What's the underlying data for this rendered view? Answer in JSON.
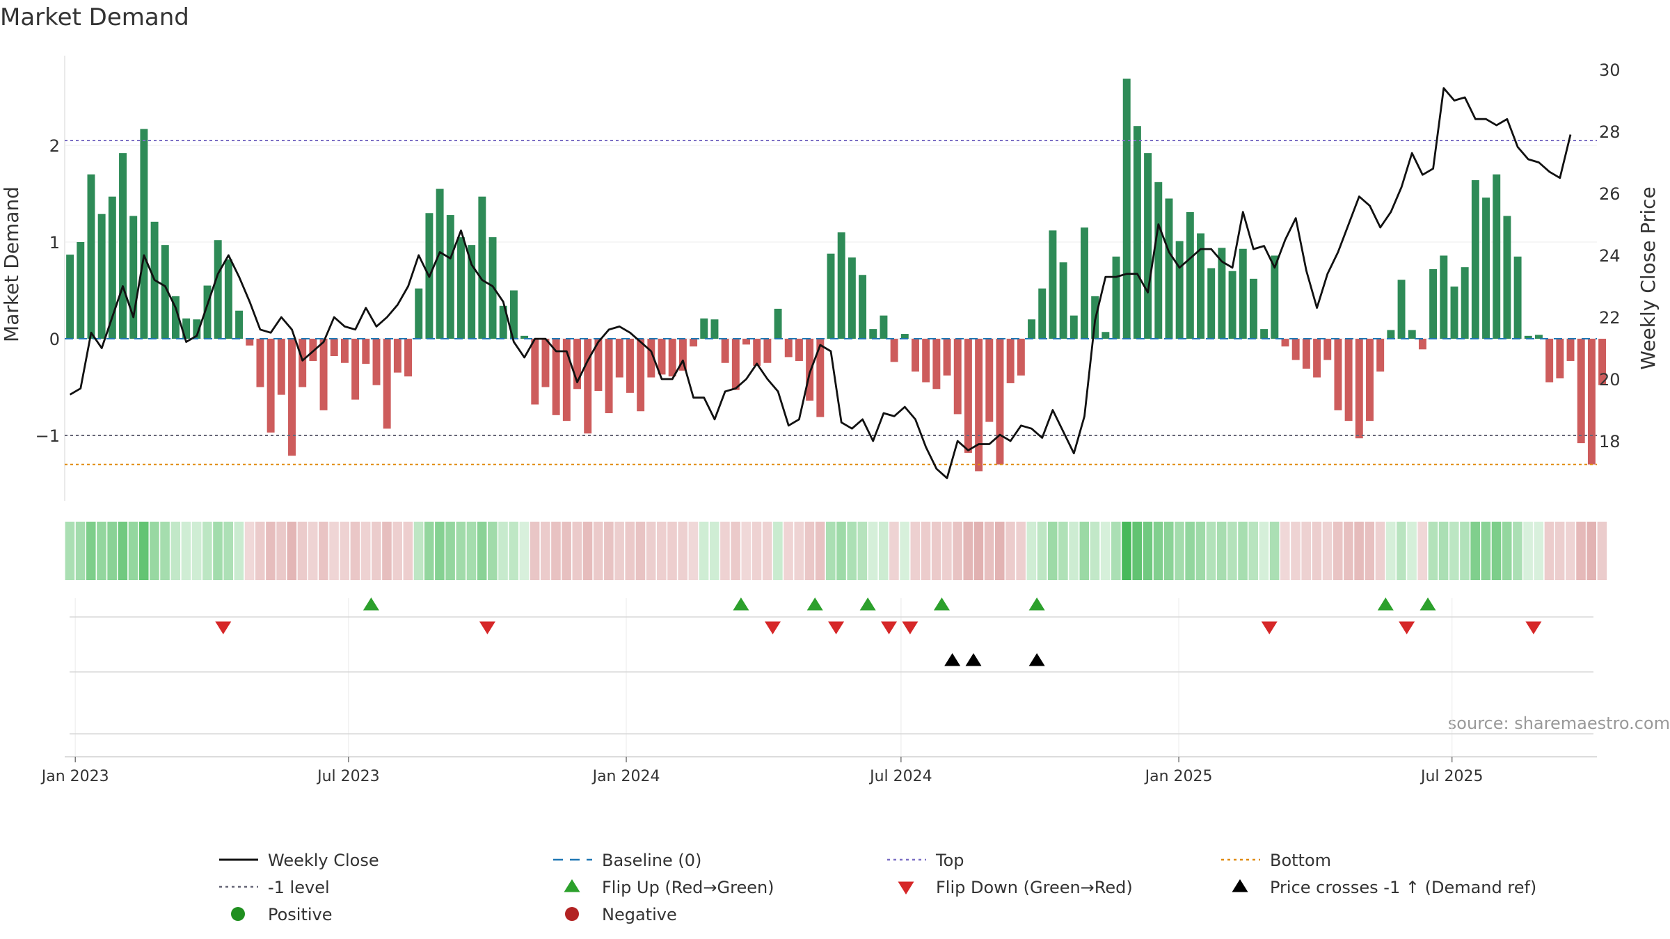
{
  "chart_data": {
    "type": "bar",
    "title": "Market Demand",
    "ylabel": "Market Demand",
    "y2label": "Weekly Close Price",
    "ylim": [
      -1.7,
      2.9
    ],
    "y_ticks": [
      -1,
      0,
      1,
      2
    ],
    "y_tick_labels": [
      "−1",
      "0",
      "1",
      "2"
    ],
    "y2lim": [
      16.3,
      30.2
    ],
    "y2_ticks": [
      18,
      20,
      22,
      24,
      26,
      28,
      30
    ],
    "x_start_date": "2022-12-25",
    "x_end_date": "2025-10-05",
    "x_ticks": [
      {
        "date": "2023-01-01",
        "label": "Jan 2023"
      },
      {
        "date": "2023-07-01",
        "label": "Jul 2023"
      },
      {
        "date": "2024-01-01",
        "label": "Jan 2024"
      },
      {
        "date": "2024-07-01",
        "label": "Jul 2024"
      },
      {
        "date": "2025-01-01",
        "label": "Jan 2025"
      },
      {
        "date": "2025-07-01",
        "label": "Jul 2025"
      }
    ],
    "first_week": "2022-12-25",
    "demand": [
      0.87,
      1.0,
      1.7,
      1.29,
      1.47,
      1.92,
      1.27,
      2.17,
      1.21,
      0.97,
      0.44,
      0.21,
      0.2,
      0.55,
      1.02,
      0.82,
      0.29,
      -0.07,
      -0.5,
      -0.97,
      -0.58,
      -1.21,
      -0.5,
      -0.23,
      -0.74,
      -0.18,
      -0.25,
      -0.63,
      -0.26,
      -0.48,
      -0.93,
      -0.35,
      -0.39,
      0.52,
      1.3,
      1.55,
      1.28,
      1.05,
      0.97,
      1.47,
      1.05,
      0.34,
      0.5,
      0.03,
      -0.68,
      -0.5,
      -0.79,
      -0.85,
      -0.52,
      -0.98,
      -0.54,
      -0.77,
      -0.4,
      -0.56,
      -0.75,
      -0.4,
      -0.37,
      -0.39,
      -0.33,
      -0.08,
      0.21,
      0.2,
      -0.25,
      -0.53,
      -0.06,
      -0.28,
      -0.25,
      0.31,
      -0.19,
      -0.23,
      -0.64,
      -0.81,
      0.88,
      1.1,
      0.84,
      0.66,
      0.1,
      0.24,
      -0.24,
      0.05,
      -0.34,
      -0.45,
      -0.52,
      -0.38,
      -0.78,
      -1.18,
      -1.37,
      -0.86,
      -1.3,
      -0.46,
      -0.38,
      0.2,
      0.52,
      1.12,
      0.79,
      0.24,
      1.15,
      0.44,
      0.07,
      0.85,
      2.69,
      2.2,
      1.92,
      1.62,
      1.45,
      1.01,
      1.31,
      1.09,
      0.73,
      0.94,
      0.7,
      0.93,
      0.62,
      0.1,
      0.86,
      -0.08,
      -0.22,
      -0.31,
      -0.4,
      -0.22,
      -0.74,
      -0.85,
      -1.03,
      -0.85,
      -0.34,
      0.09,
      0.61,
      0.09,
      -0.11,
      0.72,
      0.86,
      0.54,
      0.74,
      1.64,
      1.46,
      1.7,
      1.27,
      0.85,
      0.03,
      0.04,
      -0.45,
      -0.41,
      -0.23,
      -1.08,
      -1.3,
      -0.48
    ],
    "close": [
      19.5,
      19.7,
      21.5,
      21.0,
      22.0,
      23.0,
      22.0,
      24.0,
      23.2,
      23.0,
      22.3,
      21.2,
      21.4,
      22.4,
      23.4,
      24.0,
      23.3,
      22.5,
      21.6,
      21.5,
      22.0,
      21.6,
      20.6,
      20.9,
      21.2,
      22.0,
      21.7,
      21.6,
      22.3,
      21.7,
      22.0,
      22.4,
      23.0,
      24.0,
      23.3,
      24.1,
      23.9,
      24.8,
      23.7,
      23.2,
      23.0,
      22.5,
      21.2,
      20.7,
      21.3,
      21.3,
      20.9,
      20.9,
      19.9,
      20.6,
      21.2,
      21.6,
      21.7,
      21.5,
      21.2,
      20.9,
      20.0,
      20.0,
      20.6,
      19.4,
      19.4,
      18.7,
      19.6,
      19.7,
      20.0,
      20.5,
      20.0,
      19.6,
      18.5,
      18.7,
      20.2,
      21.1,
      20.9,
      18.6,
      18.4,
      18.7,
      18.0,
      18.9,
      18.8,
      19.1,
      18.7,
      17.8,
      17.1,
      16.8,
      18.0,
      17.7,
      17.9,
      17.9,
      18.2,
      18.0,
      18.5,
      18.4,
      18.1,
      19.0,
      18.3,
      17.6,
      18.8,
      21.9,
      23.3,
      23.3,
      23.4,
      23.4,
      22.8,
      25.0,
      24.1,
      23.6,
      23.9,
      24.2,
      24.2,
      23.8,
      23.6,
      25.4,
      24.2,
      24.3,
      23.6,
      24.5,
      25.2,
      23.5,
      22.3,
      23.4,
      24.1,
      25.0,
      25.9,
      25.6,
      24.9,
      25.4,
      26.2,
      27.3,
      26.6,
      26.8,
      29.4,
      29.0,
      29.1,
      28.4,
      28.4,
      28.2,
      28.4,
      27.5,
      27.1,
      27.0,
      26.7,
      26.5,
      27.9
    ],
    "top_level": 2.05,
    "bottom_level": -1.3,
    "minus1_level": -1.0,
    "flip_up_dates": [
      "2023-07-16",
      "2024-03-17",
      "2024-05-05",
      "2024-06-09",
      "2024-07-28",
      "2024-09-29",
      "2025-05-18",
      "2025-06-15"
    ],
    "flip_down_dates": [
      "2023-04-09",
      "2023-10-01",
      "2024-04-07",
      "2024-05-19",
      "2024-06-23",
      "2024-07-07",
      "2025-03-02",
      "2025-06-01",
      "2025-08-24"
    ],
    "cross_dates": [
      "2024-08-04",
      "2024-08-18",
      "2024-09-29"
    ],
    "source": "source: sharemaestro.com",
    "legend": [
      {
        "label": "Weekly Close",
        "symbol": "line",
        "color": "#111111"
      },
      {
        "label": "Baseline (0)",
        "symbol": "dash",
        "color": "#1f77b4"
      },
      {
        "label": "Top",
        "symbol": "dot",
        "color": "#7b6fc4"
      },
      {
        "label": "Bottom",
        "symbol": "dot",
        "color": "#e08a0b"
      },
      {
        "label": "-1 level",
        "symbol": "dot",
        "color": "#666677"
      },
      {
        "label": "Flip Up (Red→Green)",
        "symbol": "tri-up",
        "color": "#2ca02c"
      },
      {
        "label": "Flip Down (Green→Red)",
        "symbol": "tri-down",
        "color": "#d62728"
      },
      {
        "label": "Price crosses -1 ↑ (Demand ref)",
        "symbol": "tri-up",
        "color": "#000000"
      },
      {
        "label": "Positive",
        "symbol": "circle",
        "color": "#1f8f1f"
      },
      {
        "label": "Negative",
        "symbol": "circle",
        "color": "#b22222"
      }
    ],
    "colors": {
      "positive": "#2e8b57",
      "negative": "#cd5c5c",
      "line": "#111111"
    }
  }
}
